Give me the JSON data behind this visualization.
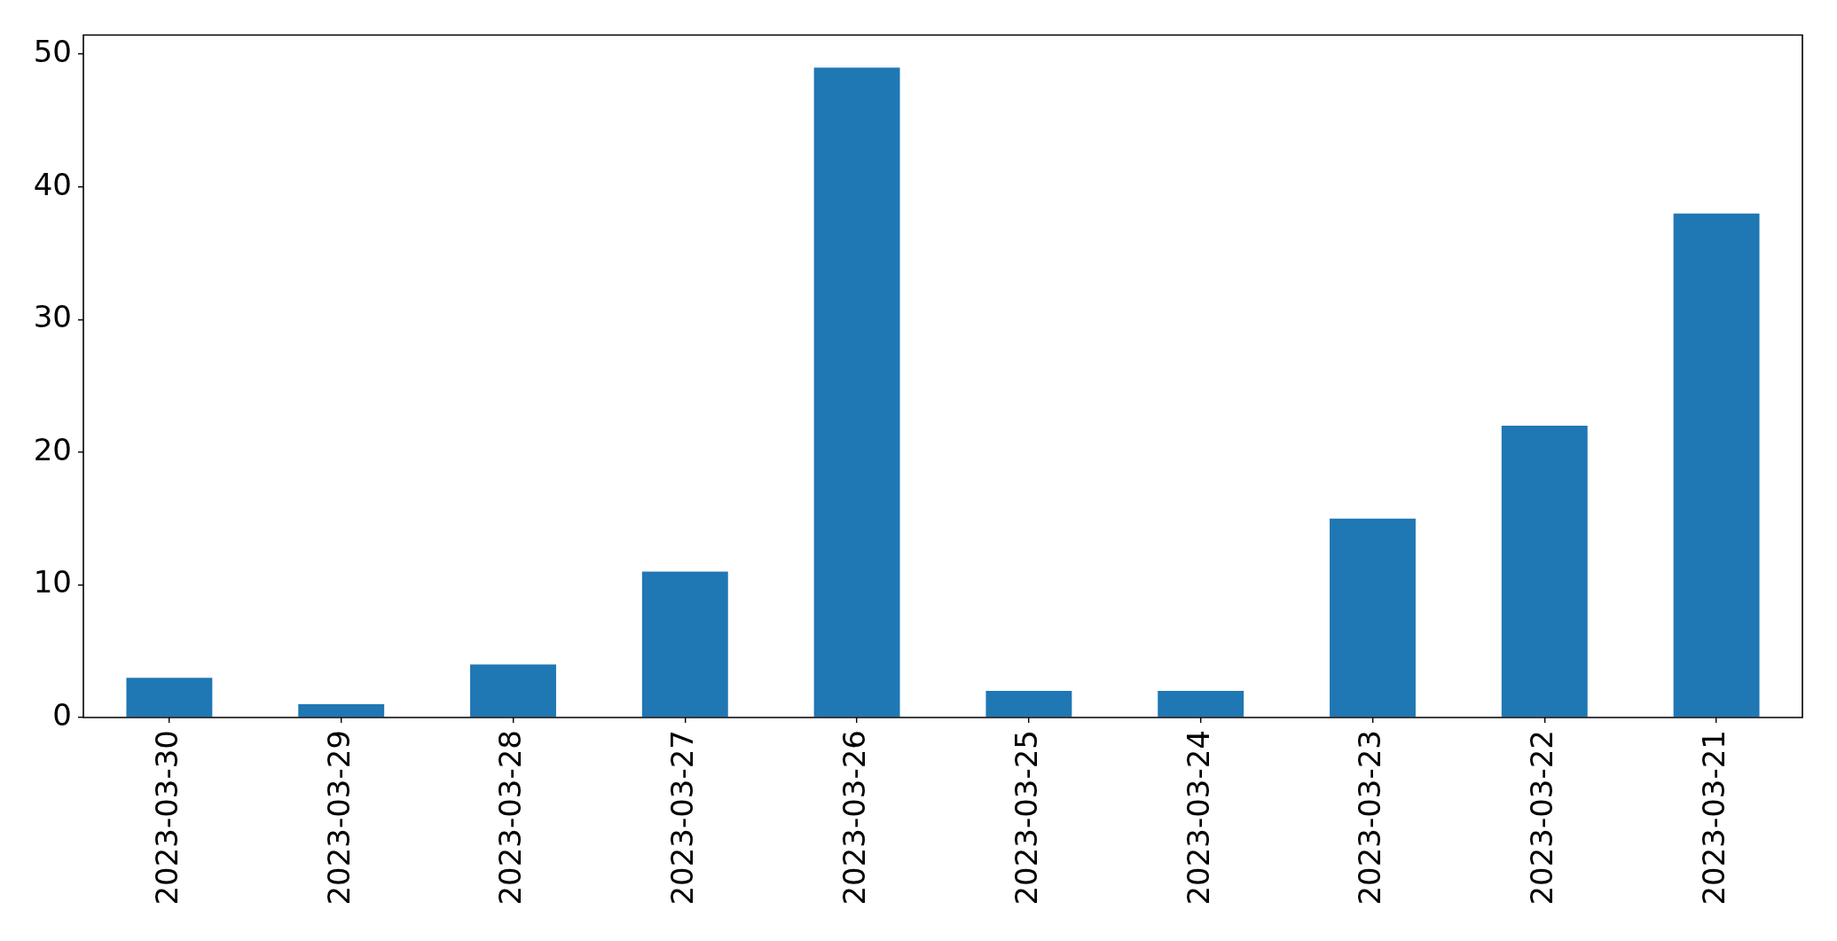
{
  "chart_data": {
    "type": "bar",
    "categories": [
      "2023-03-30",
      "2023-03-29",
      "2023-03-28",
      "2023-03-27",
      "2023-03-26",
      "2023-03-25",
      "2023-03-24",
      "2023-03-23",
      "2023-03-22",
      "2023-03-21"
    ],
    "values": [
      3,
      1,
      4,
      11,
      49,
      2,
      2,
      15,
      22,
      38
    ],
    "color": "#1f77b4",
    "ylim": [
      0,
      51.45
    ],
    "yticks": [
      0,
      10,
      20,
      30,
      40,
      50
    ]
  }
}
